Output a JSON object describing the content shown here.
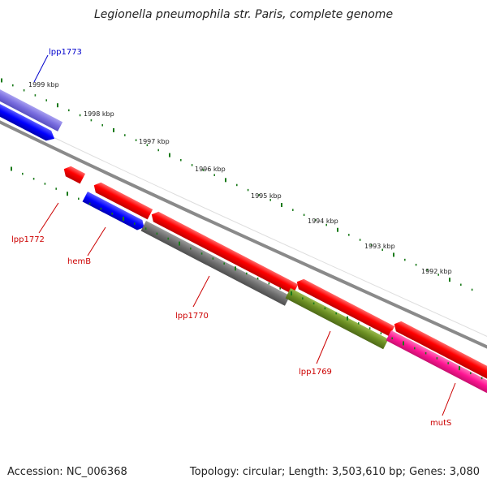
{
  "title": "Legionella pneumophila str. Paris, complete genome",
  "footer": {
    "accession": "Accession: NC_006368",
    "topology": "Topology: circular; Length: 3,503,610 bp; Genes: 3,080"
  },
  "colors": {
    "tick": "#1a7a1a",
    "backbone": "#8a8a8a",
    "feature_red": "#ff0000",
    "feature_blue": "#0000ff",
    "feature_purple": "#7a6ee0",
    "feature_gray": "#6e6e6e",
    "feature_olive": "#6b8e23",
    "feature_magenta": "#ff1493",
    "label_red": "#cc0000",
    "label_blue": "#0000cc"
  },
  "kbp_labels": [
    "1999 kbp",
    "1998 kbp",
    "1997 kbp",
    "1996 kbp",
    "1995 kbp",
    "1994 kbp",
    "1993 kbp",
    "1992 kbp"
  ],
  "genes": [
    {
      "name": "lpp1773",
      "color": "blue"
    },
    {
      "name": "lpp1772",
      "color": "red"
    },
    {
      "name": "hemB",
      "color": "red"
    },
    {
      "name": "lpp1770",
      "color": "red"
    },
    {
      "name": "lpp1769",
      "color": "red"
    },
    {
      "name": "mutS",
      "color": "red"
    }
  ]
}
